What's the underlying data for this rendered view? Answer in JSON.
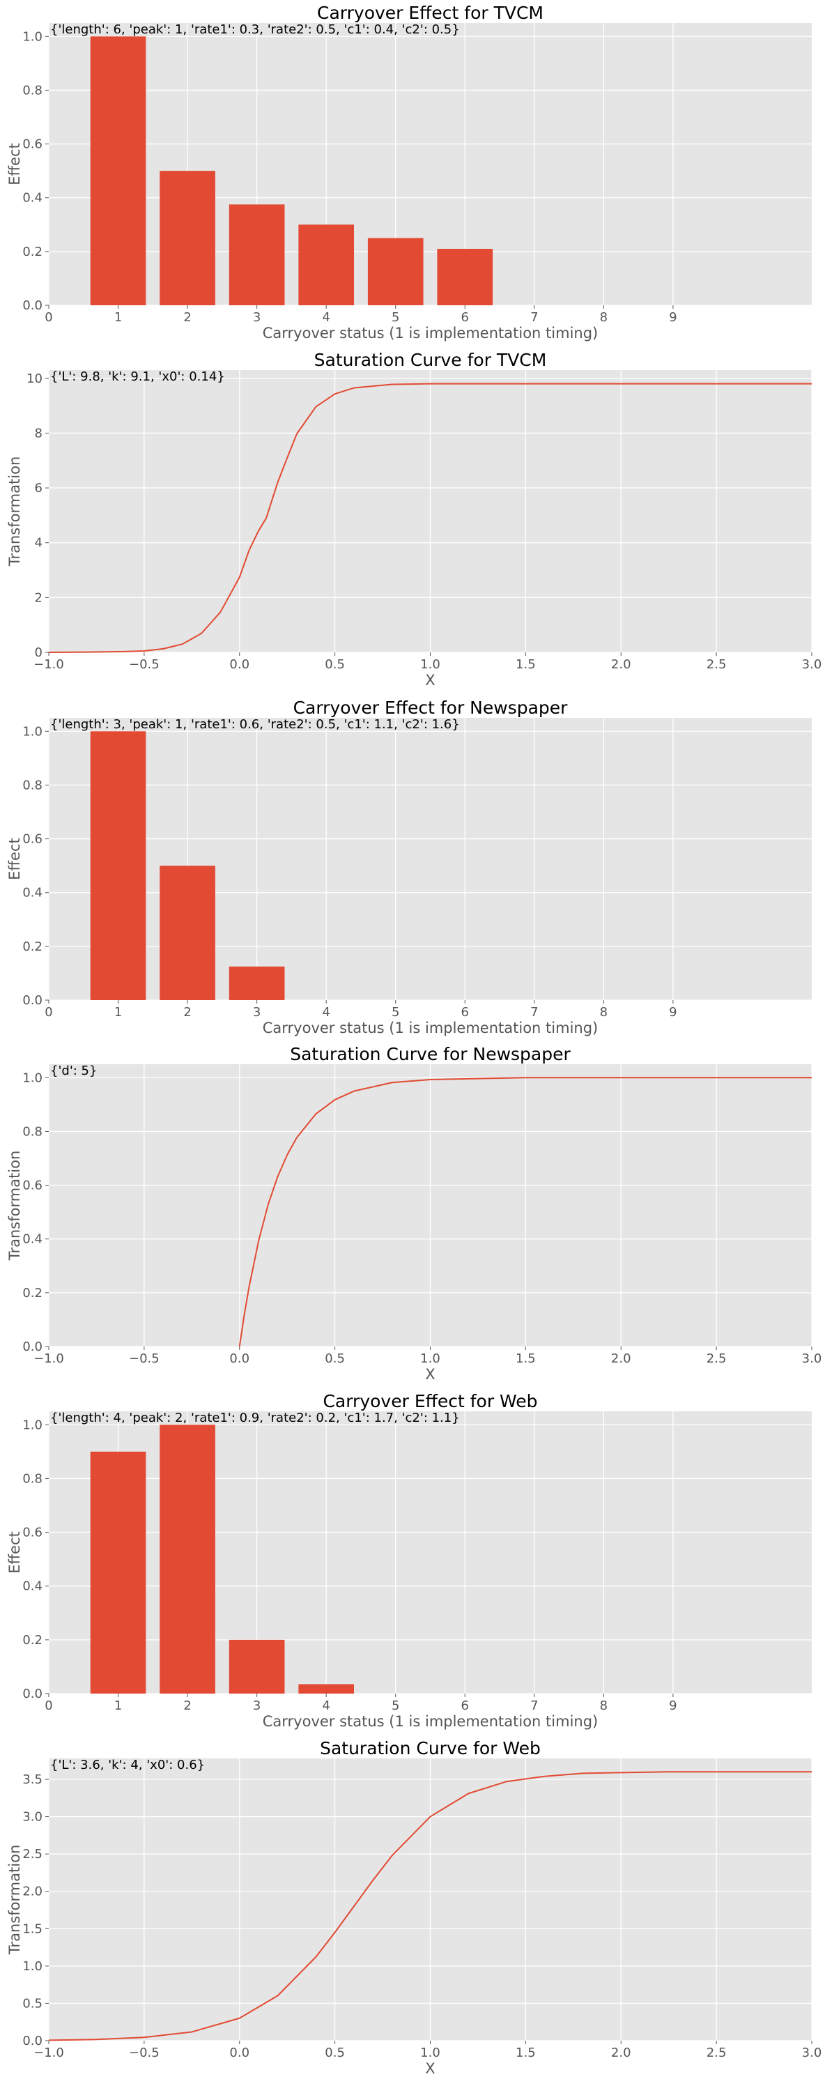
{
  "chart_data": [
    {
      "type": "bar",
      "title": "Carryover Effect for TVCM",
      "annotation": "{'length': 6, 'peak': 1, 'rate1': 0.3, 'rate2': 0.5, 'c1': 0.4, 'c2': 0.5}",
      "xlabel": "Carryover status (1 is implementation timing)",
      "ylabel": "Effect",
      "categories": [
        1,
        2,
        3,
        4,
        5,
        6
      ],
      "values": [
        1.0,
        0.5,
        0.375,
        0.3,
        0.25,
        0.21
      ],
      "xlim": [
        0,
        11
      ],
      "ylim": [
        0,
        1.05
      ],
      "xticks": [
        0,
        1,
        2,
        3,
        4,
        5,
        6,
        7,
        8,
        9
      ],
      "yticks": [
        0.0,
        0.2,
        0.4,
        0.6,
        0.8,
        1.0
      ],
      "xtick_labels": [
        "0",
        "1",
        "2",
        "3",
        "4",
        "5",
        "6",
        "7",
        "8",
        "9"
      ],
      "ytick_labels": [
        "0.0",
        "0.2",
        "0.4",
        "0.6",
        "0.8",
        "1.0"
      ],
      "grid": true,
      "color": "#E24A33"
    },
    {
      "type": "line",
      "title": "Saturation Curve for TVCM",
      "annotation": "{'L': 9.8, 'k': 9.1, 'x0': 0.14}",
      "xlabel": "X",
      "ylabel": "Transformation",
      "x": [
        -1.0,
        -0.8,
        -0.6,
        -0.5,
        -0.4,
        -0.3,
        -0.2,
        -0.1,
        0.0,
        0.05,
        0.1,
        0.14,
        0.2,
        0.25,
        0.3,
        0.4,
        0.5,
        0.6,
        0.8,
        1.0,
        1.5,
        2.0,
        2.5,
        3.0
      ],
      "y": [
        0.0,
        0.01,
        0.03,
        0.05,
        0.13,
        0.3,
        0.69,
        1.47,
        2.74,
        3.72,
        4.44,
        4.9,
        6.2,
        7.1,
        7.97,
        8.96,
        9.43,
        9.65,
        9.78,
        9.8,
        9.8,
        9.8,
        9.8,
        9.8
      ],
      "xlim": [
        -1.0,
        3.0
      ],
      "ylim": [
        0,
        10.3
      ],
      "xticks": [
        -1.0,
        -0.5,
        0.0,
        0.5,
        1.0,
        1.5,
        2.0,
        2.5,
        3.0
      ],
      "yticks": [
        0,
        2,
        4,
        6,
        8,
        10
      ],
      "xtick_labels": [
        "−1.0",
        "−0.5",
        "0.0",
        "0.5",
        "1.0",
        "1.5",
        "2.0",
        "2.5",
        "3.0"
      ],
      "ytick_labels": [
        "0",
        "2",
        "4",
        "6",
        "8",
        "10"
      ],
      "grid": true,
      "color": "#E24A33"
    },
    {
      "type": "bar",
      "title": "Carryover Effect for Newspaper",
      "annotation": "{'length': 3, 'peak': 1, 'rate1': 0.6, 'rate2': 0.5, 'c1': 1.1, 'c2': 1.6}",
      "xlabel": "Carryover status (1 is implementation timing)",
      "ylabel": "Effect",
      "categories": [
        1,
        2,
        3
      ],
      "values": [
        1.0,
        0.5,
        0.125
      ],
      "xlim": [
        0,
        11
      ],
      "ylim": [
        0,
        1.05
      ],
      "xticks": [
        0,
        1,
        2,
        3,
        4,
        5,
        6,
        7,
        8,
        9
      ],
      "yticks": [
        0.0,
        0.2,
        0.4,
        0.6,
        0.8,
        1.0
      ],
      "xtick_labels": [
        "0",
        "1",
        "2",
        "3",
        "4",
        "5",
        "6",
        "7",
        "8",
        "9"
      ],
      "ytick_labels": [
        "0.0",
        "0.2",
        "0.4",
        "0.6",
        "0.8",
        "1.0"
      ],
      "grid": true,
      "color": "#E24A33"
    },
    {
      "type": "line",
      "title": "Saturation Curve for Newspaper",
      "annotation": "{'d': 5}",
      "xlabel": "X",
      "ylabel": "Transformation",
      "x": [
        0.0,
        0.025,
        0.05,
        0.1,
        0.15,
        0.2,
        0.25,
        0.3,
        0.4,
        0.5,
        0.6,
        0.8,
        1.0,
        1.5,
        2.0,
        2.5,
        3.0
      ],
      "y": [
        0.0,
        0.118,
        0.221,
        0.393,
        0.528,
        0.632,
        0.713,
        0.777,
        0.865,
        0.918,
        0.95,
        0.982,
        0.993,
        1.0,
        1.0,
        1.0,
        1.0
      ],
      "xlim": [
        -1.0,
        3.0
      ],
      "ylim": [
        0,
        1.05
      ],
      "xticks": [
        -1.0,
        -0.5,
        0.0,
        0.5,
        1.0,
        1.5,
        2.0,
        2.5,
        3.0
      ],
      "yticks": [
        0.0,
        0.2,
        0.4,
        0.6,
        0.8,
        1.0
      ],
      "xtick_labels": [
        "−1.0",
        "−0.5",
        "0.0",
        "0.5",
        "1.0",
        "1.5",
        "2.0",
        "2.5",
        "3.0"
      ],
      "ytick_labels": [
        "0.0",
        "0.2",
        "0.4",
        "0.6",
        "0.8",
        "1.0"
      ],
      "grid": true,
      "color": "#E24A33"
    },
    {
      "type": "bar",
      "title": "Carryover Effect for Web",
      "annotation": "{'length': 4, 'peak': 2, 'rate1': 0.9, 'rate2': 0.2, 'c1': 1.7, 'c2': 1.1}",
      "xlabel": "Carryover status (1 is implementation timing)",
      "ylabel": "Effect",
      "categories": [
        1,
        2,
        3,
        4
      ],
      "values": [
        0.9,
        1.0,
        0.2,
        0.035
      ],
      "xlim": [
        0,
        11
      ],
      "ylim": [
        0,
        1.05
      ],
      "xticks": [
        0,
        1,
        2,
        3,
        4,
        5,
        6,
        7,
        8,
        9
      ],
      "yticks": [
        0.0,
        0.2,
        0.4,
        0.6,
        0.8,
        1.0
      ],
      "xtick_labels": [
        "0",
        "1",
        "2",
        "3",
        "4",
        "5",
        "6",
        "7",
        "8",
        "9"
      ],
      "ytick_labels": [
        "0.0",
        "0.2",
        "0.4",
        "0.6",
        "0.8",
        "1.0"
      ],
      "grid": true,
      "color": "#E24A33"
    },
    {
      "type": "line",
      "title": "Saturation Curve for Web",
      "annotation": "{'L': 3.6, 'k': 4, 'x0': 0.6}",
      "xlabel": "X",
      "ylabel": "Transformation",
      "x": [
        -1.0,
        -0.75,
        -0.5,
        -0.25,
        0.0,
        0.2,
        0.4,
        0.5,
        0.6,
        0.7,
        0.8,
        1.0,
        1.2,
        1.4,
        1.6,
        1.8,
        2.0,
        2.25,
        2.5,
        2.75,
        3.0
      ],
      "y": [
        0.006,
        0.016,
        0.044,
        0.117,
        0.301,
        0.602,
        1.12,
        1.45,
        1.8,
        2.15,
        2.48,
        3.0,
        3.31,
        3.47,
        3.54,
        3.58,
        3.59,
        3.6,
        3.6,
        3.6,
        3.6
      ],
      "xlim": [
        -1.0,
        3.0
      ],
      "ylim": [
        0,
        3.78
      ],
      "xticks": [
        -1.0,
        -0.5,
        0.0,
        0.5,
        1.0,
        1.5,
        2.0,
        2.5,
        3.0
      ],
      "yticks": [
        0.0,
        0.5,
        1.0,
        1.5,
        2.0,
        2.5,
        3.0,
        3.5
      ],
      "xtick_labels": [
        "−1.0",
        "−0.5",
        "0.0",
        "0.5",
        "1.0",
        "1.5",
        "2.0",
        "2.5",
        "3.0"
      ],
      "ytick_labels": [
        "0.0",
        "0.5",
        "1.0",
        "1.5",
        "2.0",
        "2.5",
        "3.0",
        "3.5"
      ],
      "grid": true,
      "color": "#E24A33"
    }
  ]
}
